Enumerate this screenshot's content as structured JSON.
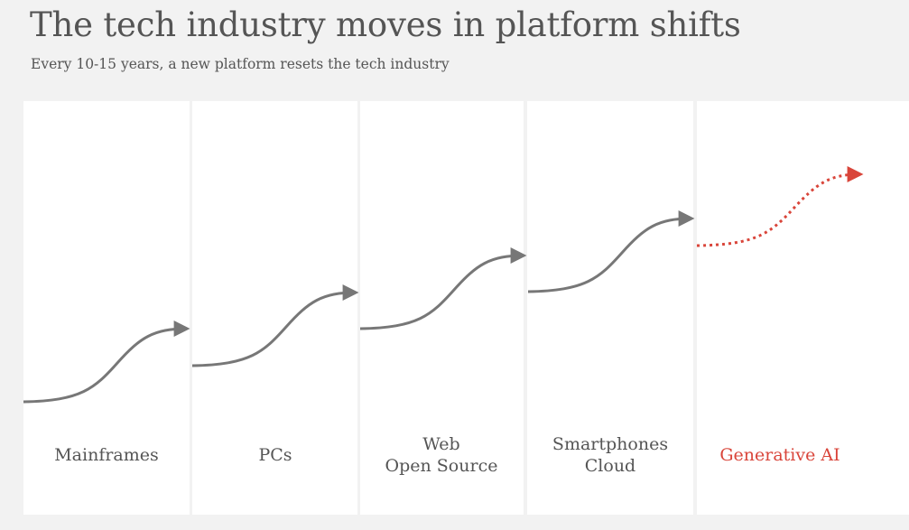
{
  "header": {
    "title": "The tech industry moves in platform shifts",
    "subtitle": "Every 10-15 years, a new platform resets the tech industry"
  },
  "eras": [
    {
      "lines": [
        "Mainframes"
      ],
      "highlight": false
    },
    {
      "lines": [
        "PCs"
      ],
      "highlight": false
    },
    {
      "lines": [
        "Web",
        "Open Source"
      ],
      "highlight": false
    },
    {
      "lines": [
        "Smartphones",
        "Cloud"
      ],
      "highlight": false
    },
    {
      "lines": [
        "Generative AI"
      ],
      "highlight": true
    }
  ],
  "colors": {
    "curve": "#777777",
    "highlight": "#d9453a",
    "label": "#555555",
    "background": "#f2f2f2",
    "panel": "#ffffff"
  }
}
